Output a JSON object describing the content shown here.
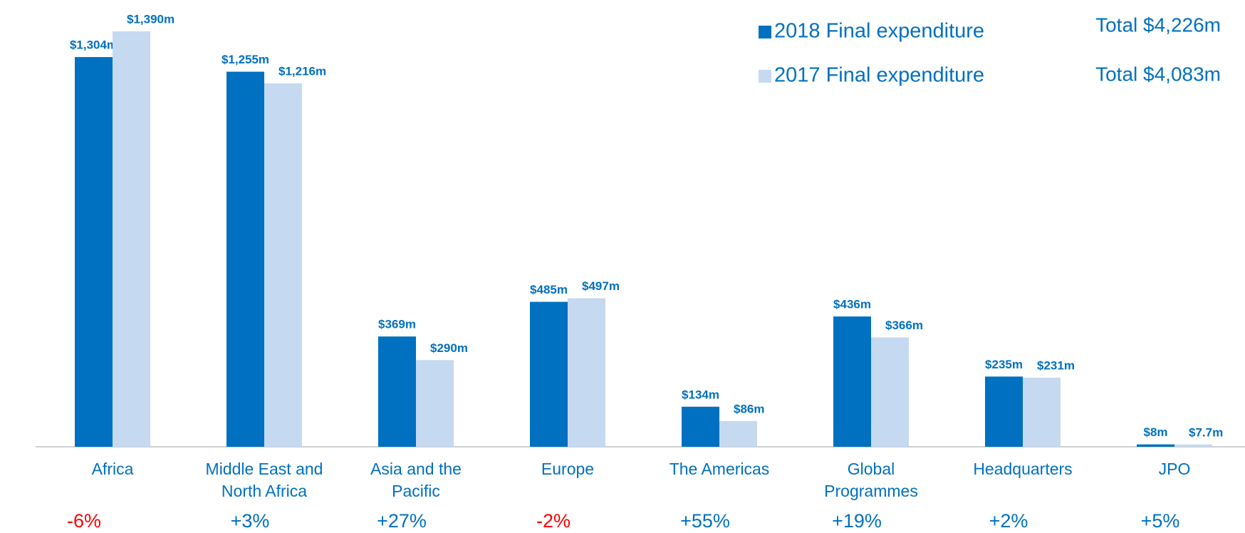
{
  "chart_data": {
    "type": "bar",
    "categories": [
      "Africa",
      "Middle East and North Africa",
      "Asia and the Pacific",
      "Europe",
      "The Americas",
      "Global Programmes",
      "Headquarters",
      "JPO"
    ],
    "series": [
      {
        "name": "2018 Final expenditure",
        "color": "#0070c0",
        "total_label": "Total $4,226m",
        "values": [
          1304,
          1255,
          369,
          485,
          134,
          436,
          235,
          8
        ],
        "value_labels": [
          "$1,304m",
          "$1,255m",
          "$369m",
          "$485m",
          "$134m",
          "$436m",
          "$235m",
          "$8m"
        ]
      },
      {
        "name": "2017 Final expenditure",
        "color": "#c5d9f1",
        "total_label": "Total $4,083m",
        "values": [
          1390,
          1216,
          290,
          497,
          86,
          366,
          231,
          7.7
        ],
        "value_labels": [
          "$1,390m",
          "$1,216m",
          "$290m",
          "$497m",
          "$86m",
          "$366m",
          "$231m",
          "$7.7m"
        ]
      }
    ],
    "changes": [
      "-6%",
      "+3%",
      "+27%",
      "-2%",
      "+55%",
      "+19%",
      "+2%",
      "+5%"
    ],
    "positive_color": "#0070c0",
    "negative_color": "#ff0000",
    "label_color": "#0070c0"
  }
}
